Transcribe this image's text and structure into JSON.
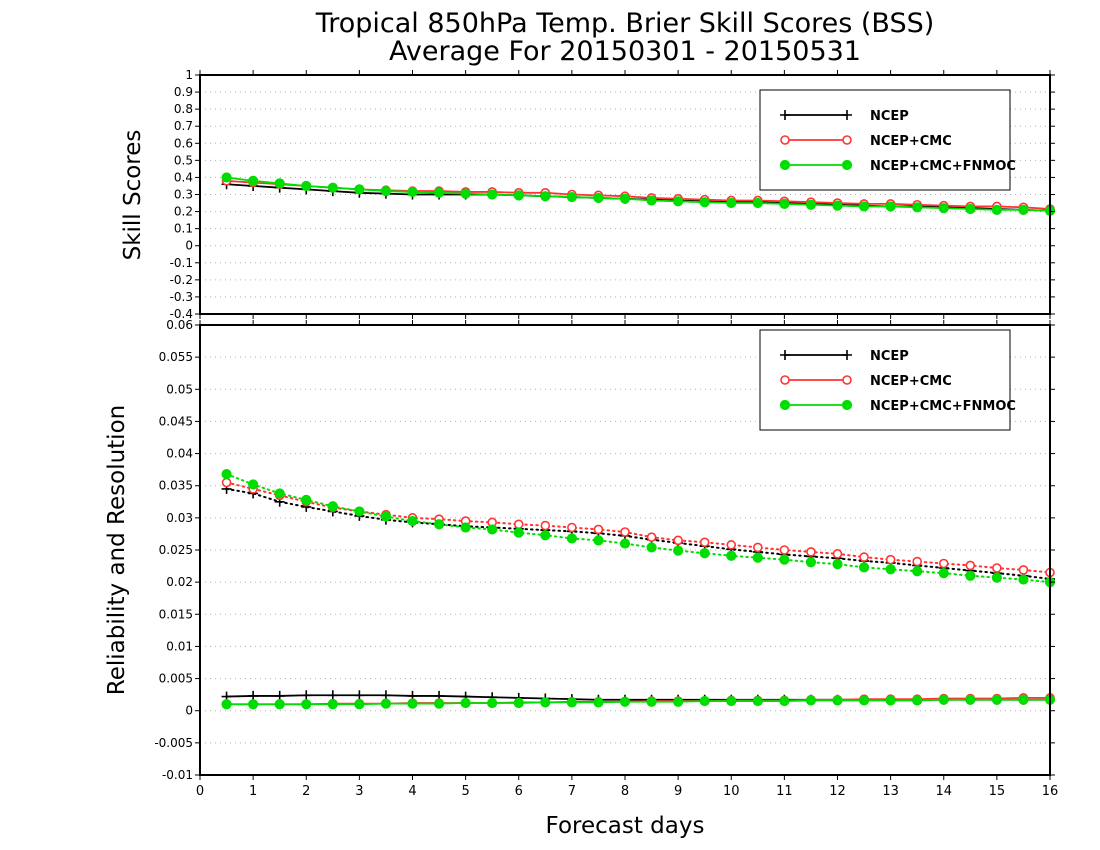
{
  "title_line1": "Tropical 850hPa Temp. Brier Skill Scores (BSS)",
  "title_line2": "Average For 20150301 - 20150531",
  "xlabel": "Forecast days",
  "colors": {
    "NCEP": "#000000",
    "NCEP+CMC": "#ff3333",
    "NCEP+CMC+FNMOC": "#00dd00"
  },
  "chart_data": [
    {
      "type": "line",
      "ylabel": "Skill Scores",
      "xlim": [
        0,
        16
      ],
      "ylim": [
        -0.4,
        1
      ],
      "x_ticks": [
        0,
        1,
        2,
        3,
        4,
        5,
        6,
        7,
        8,
        9,
        10,
        11,
        12,
        13,
        14,
        15,
        16
      ],
      "y_ticks": [
        -0.4,
        -0.3,
        -0.2,
        -0.1,
        0,
        0.1,
        0.2,
        0.3,
        0.4,
        0.5,
        0.6,
        0.7,
        0.8,
        0.9,
        1
      ],
      "y_tick_labels": [
        "-0.4",
        "-0.3",
        "-0.2",
        "-0.1",
        "0",
        "0.1",
        "0.2",
        "0.3",
        "0.4",
        "0.5",
        "0.6",
        "0.7",
        "0.8",
        "0.9",
        "1"
      ],
      "grid": true,
      "legend": "top-right",
      "x": [
        0.5,
        1,
        1.5,
        2,
        2.5,
        3,
        3.5,
        4,
        4.5,
        5,
        5.5,
        6,
        6.5,
        7,
        7.5,
        8,
        8.5,
        9,
        9.5,
        10,
        10.5,
        11,
        11.5,
        12,
        12.5,
        13,
        13.5,
        14,
        14.5,
        15,
        15.5,
        16
      ],
      "series": [
        {
          "name": "NCEP",
          "style": "solid",
          "marker": "plus",
          "values": [
            0.36,
            0.35,
            0.34,
            0.33,
            0.32,
            0.31,
            0.305,
            0.3,
            0.3,
            0.3,
            0.3,
            0.295,
            0.29,
            0.285,
            0.28,
            0.275,
            0.27,
            0.265,
            0.26,
            0.255,
            0.255,
            0.25,
            0.245,
            0.24,
            0.235,
            0.23,
            0.23,
            0.225,
            0.22,
            0.215,
            0.21,
            0.205
          ]
        },
        {
          "name": "NCEP+CMC",
          "style": "solid",
          "marker": "open-circle",
          "values": [
            0.38,
            0.37,
            0.36,
            0.35,
            0.34,
            0.33,
            0.325,
            0.32,
            0.32,
            0.315,
            0.315,
            0.31,
            0.31,
            0.3,
            0.295,
            0.29,
            0.28,
            0.275,
            0.27,
            0.265,
            0.265,
            0.26,
            0.255,
            0.25,
            0.245,
            0.245,
            0.24,
            0.235,
            0.23,
            0.23,
            0.225,
            0.215
          ]
        },
        {
          "name": "NCEP+CMC+FNMOC",
          "style": "solid",
          "marker": "filled-circle",
          "values": [
            0.4,
            0.38,
            0.365,
            0.35,
            0.34,
            0.33,
            0.32,
            0.315,
            0.31,
            0.305,
            0.3,
            0.295,
            0.29,
            0.285,
            0.28,
            0.275,
            0.265,
            0.26,
            0.255,
            0.25,
            0.25,
            0.245,
            0.24,
            0.235,
            0.23,
            0.23,
            0.225,
            0.22,
            0.215,
            0.21,
            0.21,
            0.205
          ]
        }
      ]
    },
    {
      "type": "line",
      "ylabel": "Reliability and Resolution",
      "xlim": [
        0,
        16
      ],
      "ylim": [
        -0.01,
        0.06
      ],
      "x_ticks": [
        0,
        1,
        2,
        3,
        4,
        5,
        6,
        7,
        8,
        9,
        10,
        11,
        12,
        13,
        14,
        15,
        16
      ],
      "x_tick_labels": [
        "0",
        "1",
        "2",
        "3",
        "4",
        "5",
        "6",
        "7",
        "8",
        "9",
        "10",
        "11",
        "12",
        "13",
        "14",
        "15",
        "16"
      ],
      "y_ticks": [
        -0.01,
        -0.005,
        0,
        0.005,
        0.01,
        0.015,
        0.02,
        0.025,
        0.03,
        0.035,
        0.04,
        0.045,
        0.05,
        0.055,
        0.06
      ],
      "y_tick_labels": [
        "-0.01",
        "-0.005",
        "0",
        "0.005",
        "0.01",
        "0.015",
        "0.02",
        "0.025",
        "0.03",
        "0.035",
        "0.04",
        "0.045",
        "0.05",
        "0.055",
        "0.06"
      ],
      "grid": true,
      "legend": "top-right",
      "x": [
        0.5,
        1,
        1.5,
        2,
        2.5,
        3,
        3.5,
        4,
        4.5,
        5,
        5.5,
        6,
        6.5,
        7,
        7.5,
        8,
        8.5,
        9,
        9.5,
        10,
        10.5,
        11,
        11.5,
        12,
        12.5,
        13,
        13.5,
        14,
        14.5,
        15,
        15.5,
        16
      ],
      "series": [
        {
          "name": "NCEP",
          "style": "dotted",
          "marker": "plus",
          "values": [
            0.0345,
            0.0338,
            0.0325,
            0.0317,
            0.031,
            0.0303,
            0.0297,
            0.0293,
            0.029,
            0.0287,
            0.0285,
            0.0283,
            0.0281,
            0.0279,
            0.0276,
            0.0272,
            0.0266,
            0.0261,
            0.0256,
            0.0251,
            0.0247,
            0.0243,
            0.024,
            0.0237,
            0.0233,
            0.023,
            0.0226,
            0.0222,
            0.0218,
            0.0214,
            0.021,
            0.0205
          ]
        },
        {
          "name": "NCEP+CMC",
          "style": "dotted",
          "marker": "open-circle",
          "values": [
            0.0355,
            0.0345,
            0.0335,
            0.0325,
            0.0316,
            0.031,
            0.0305,
            0.03,
            0.0298,
            0.0295,
            0.0293,
            0.029,
            0.0288,
            0.0285,
            0.0282,
            0.0278,
            0.027,
            0.0265,
            0.0262,
            0.0258,
            0.0254,
            0.025,
            0.0247,
            0.0244,
            0.0239,
            0.0235,
            0.0232,
            0.0229,
            0.0226,
            0.0222,
            0.0219,
            0.0215
          ]
        },
        {
          "name": "NCEP+CMC+FNMOC",
          "style": "dotted",
          "marker": "filled-circle",
          "values": [
            0.0368,
            0.0352,
            0.0338,
            0.0328,
            0.0318,
            0.031,
            0.0302,
            0.0295,
            0.029,
            0.0285,
            0.0282,
            0.0277,
            0.0273,
            0.0268,
            0.0265,
            0.026,
            0.0254,
            0.0249,
            0.0245,
            0.0241,
            0.0238,
            0.0235,
            0.0231,
            0.0228,
            0.0223,
            0.022,
            0.0217,
            0.0214,
            0.021,
            0.0207,
            0.0204,
            0.02
          ]
        },
        {
          "name": "NCEP",
          "style": "solid",
          "marker": "plus",
          "values": [
            0.0022,
            0.0023,
            0.0023,
            0.0024,
            0.0024,
            0.0024,
            0.0024,
            0.0023,
            0.0023,
            0.0022,
            0.0021,
            0.002,
            0.0019,
            0.0018,
            0.0017,
            0.0017,
            0.0017,
            0.0017,
            0.0017,
            0.0017,
            0.0017,
            0.0017,
            0.0017,
            0.0017,
            0.0017,
            0.0017,
            0.0017,
            0.0017,
            0.0017,
            0.0017,
            0.0017,
            0.0017
          ]
        },
        {
          "name": "NCEP+CMC",
          "style": "solid",
          "marker": "open-circle",
          "values": [
            0.001,
            0.001,
            0.001,
            0.001,
            0.0011,
            0.0011,
            0.0011,
            0.0012,
            0.0012,
            0.0012,
            0.0012,
            0.0013,
            0.0013,
            0.0014,
            0.0014,
            0.0014,
            0.0015,
            0.0015,
            0.0015,
            0.0016,
            0.0016,
            0.0016,
            0.0017,
            0.0017,
            0.0018,
            0.0018,
            0.0018,
            0.0019,
            0.0019,
            0.0019,
            0.002,
            0.002
          ]
        },
        {
          "name": "NCEP+CMC+FNMOC",
          "style": "solid",
          "marker": "filled-circle",
          "values": [
            0.001,
            0.001,
            0.001,
            0.001,
            0.001,
            0.001,
            0.0011,
            0.0011,
            0.0011,
            0.0012,
            0.0012,
            0.0012,
            0.0013,
            0.0013,
            0.0013,
            0.0014,
            0.0014,
            0.0014,
            0.0015,
            0.0015,
            0.0015,
            0.0015,
            0.0016,
            0.0016,
            0.0016,
            0.0016,
            0.0016,
            0.0017,
            0.0017,
            0.0017,
            0.0017,
            0.0017
          ]
        }
      ]
    }
  ]
}
